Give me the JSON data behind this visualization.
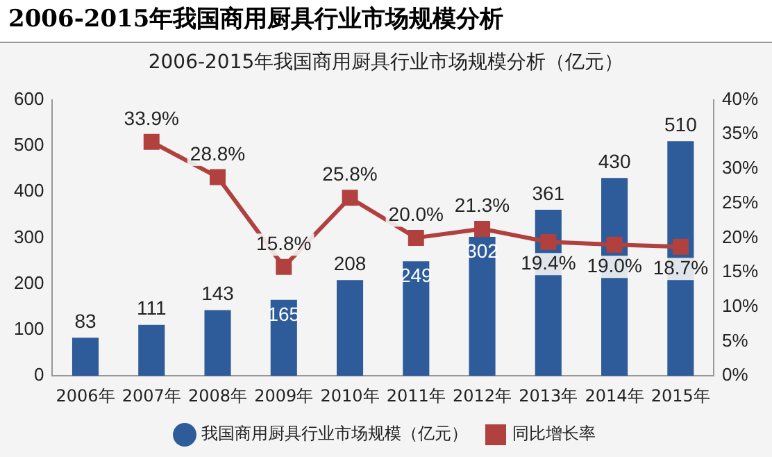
{
  "chart_data": {
    "type": "bar",
    "title": "2006-2015年我国商用厨具行业市场规模分析",
    "subtitle": "2006-2015年我国商用厨具行业市场规模分析（亿元）",
    "categories": [
      "2006年",
      "2007年",
      "2008年",
      "2009年",
      "2010年",
      "2011年",
      "2012年",
      "2013年",
      "2014年",
      "2015年"
    ],
    "series": [
      {
        "name": "我国商用厨具行业市场规模（亿元）",
        "color": "#2e5b9a",
        "values": [
          83,
          111,
          143,
          165,
          208,
          249,
          302,
          361,
          430,
          510
        ],
        "value_labels": [
          "83",
          "111",
          "143",
          "165",
          "208",
          "249",
          "302",
          "361",
          "430",
          "510"
        ]
      },
      {
        "name": "同比增长率",
        "type": "line",
        "axis": "y2",
        "color": "#b0413e",
        "marker": "square",
        "values": [
          null,
          33.9,
          28.8,
          15.8,
          25.8,
          20.0,
          21.3,
          19.4,
          19.0,
          18.7
        ],
        "value_labels": [
          null,
          "33.9%",
          "28.8%",
          "15.8%",
          "25.8%",
          "20.0%",
          "21.3%",
          "19.4%",
          "19.0%",
          "18.7%"
        ]
      }
    ],
    "ylim": [
      0,
      600
    ],
    "yticks": [
      0,
      100,
      200,
      300,
      400,
      500,
      600
    ],
    "y2lim": [
      0,
      40
    ],
    "y2ticks": [
      {
        "value": 0,
        "label": "0%"
      },
      {
        "value": 5,
        "label": "5%"
      },
      {
        "value": 10,
        "label": "10%"
      },
      {
        "value": 15,
        "label": "15%"
      },
      {
        "value": 20,
        "label": "20%"
      },
      {
        "value": 25,
        "label": "25%"
      },
      {
        "value": 30,
        "label": "30%"
      },
      {
        "value": 35,
        "label": "35%"
      },
      {
        "value": 40,
        "label": "40%"
      }
    ],
    "grid": false,
    "legend": "bottom"
  }
}
